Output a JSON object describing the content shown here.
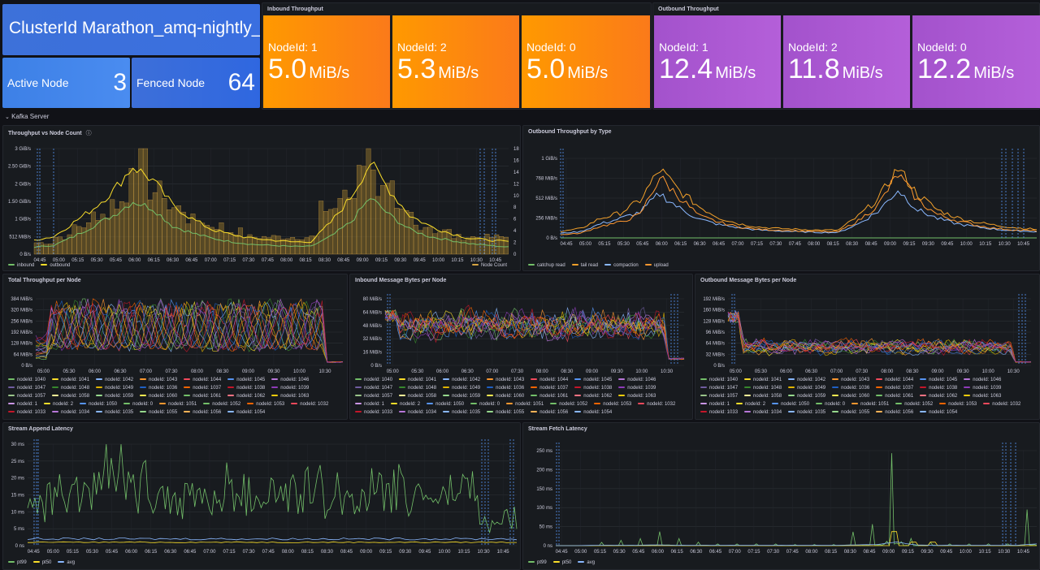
{
  "cluster": {
    "title": "ClusterId Marathon_amq-nightly_w",
    "active_label": "Active Node",
    "active_value": "3",
    "fenced_label": "Fenced Node",
    "fenced_value": "64"
  },
  "inbound": {
    "title": "Inbound Throughput",
    "nodes": [
      {
        "label": "NodeId: 1",
        "value": "5.0",
        "unit": "MiB/s"
      },
      {
        "label": "NodeId: 2",
        "value": "5.3",
        "unit": "MiB/s"
      },
      {
        "label": "NodeId: 0",
        "value": "5.0",
        "unit": "MiB/s"
      }
    ]
  },
  "outbound": {
    "title": "Outbound Throughput",
    "nodes": [
      {
        "label": "NodeId: 1",
        "value": "12.4",
        "unit": "MiB/s"
      },
      {
        "label": "NodeId: 2",
        "value": "11.8",
        "unit": "MiB/s"
      },
      {
        "label": "NodeId: 0",
        "value": "12.2",
        "unit": "MiB/s"
      }
    ]
  },
  "row_title": "Kafka Server",
  "row_chevron": "⌄",
  "colors": {
    "inbound": "#73bf69",
    "outbound": "#fade2a",
    "node_count": "#d7a544",
    "catchup": "#73bf69",
    "tail": "#f2a02a",
    "compaction": "#8ab8ff",
    "upload": "#ff9830",
    "pt99": "#73bf69",
    "pt50": "#fade2a",
    "avg": "#8ab8ff",
    "cluster_tile": "#3d71d9",
    "inbound_tile": "#ff8c1a",
    "outbound_tile": "#b351d9",
    "bg": "#111217",
    "panel": "#181b1f"
  },
  "panels": {
    "tvn": {
      "title": "Throughput vs Node Count",
      "info_icon": "ⓘ",
      "legend": [
        {
          "name": "inbound",
          "color": "#73bf69"
        },
        {
          "name": "outbound",
          "color": "#fade2a"
        }
      ],
      "legend_right": {
        "name": "Node Count",
        "color": "#d7a544"
      }
    },
    "obt": {
      "title": "Outbound Throughput by Type",
      "legend": [
        {
          "name": "catchup read",
          "color": "#73bf69"
        },
        {
          "name": "tail read",
          "color": "#f2a02a"
        },
        {
          "name": "compaction",
          "color": "#8ab8ff"
        },
        {
          "name": "upload",
          "color": "#ff9830"
        }
      ]
    },
    "ttn": {
      "title": "Total Throughput per Node"
    },
    "imb": {
      "title": "Inbound Message Bytes per Node"
    },
    "omb": {
      "title": "Outbound Message Bytes per Node"
    },
    "sal": {
      "title": "Stream Append Latency",
      "legend": [
        {
          "name": "pt99",
          "color": "#73bf69"
        },
        {
          "name": "pt50",
          "color": "#fade2a"
        },
        {
          "name": "avg",
          "color": "#8ab8ff"
        }
      ]
    },
    "sfl": {
      "title": "Stream Fetch Latency",
      "legend": [
        {
          "name": "pt99",
          "color": "#73bf69"
        },
        {
          "name": "pt50",
          "color": "#fade2a"
        },
        {
          "name": "avg",
          "color": "#8ab8ff"
        }
      ]
    }
  },
  "node_legend": [
    {
      "name": "nodeId: 1040",
      "color": "#73bf69"
    },
    {
      "name": "nodeId: 1041",
      "color": "#fade2a"
    },
    {
      "name": "nodeId: 1042",
      "color": "#8ab8ff"
    },
    {
      "name": "nodeId: 1043",
      "color": "#ff9830"
    },
    {
      "name": "nodeId: 1044",
      "color": "#f2495c"
    },
    {
      "name": "nodeId: 1045",
      "color": "#5794f2"
    },
    {
      "name": "nodeId: 1046",
      "color": "#b877d9"
    },
    {
      "name": "nodeId: 1047",
      "color": "#705da0"
    },
    {
      "name": "nodeId: 1048",
      "color": "#37872d"
    },
    {
      "name": "nodeId: 1049",
      "color": "#e0b400"
    },
    {
      "name": "nodeId: 1036",
      "color": "#1f60c4"
    },
    {
      "name": "nodeId: 1037",
      "color": "#fa6400"
    },
    {
      "name": "nodeId: 1038",
      "color": "#c4162a"
    },
    {
      "name": "nodeId: 1039",
      "color": "#8f3bb8"
    },
    {
      "name": "nodeId: 1057",
      "color": "#9ac48a"
    },
    {
      "name": "nodeId: 1058",
      "color": "#fff899"
    },
    {
      "name": "nodeId: 1059",
      "color": "#96d98d"
    },
    {
      "name": "nodeId: 1060",
      "color": "#ffee52"
    },
    {
      "name": "nodeId: 1061",
      "color": "#73bf69"
    },
    {
      "name": "nodeId: 1062",
      "color": "#ff7383"
    },
    {
      "name": "nodeId: 1063",
      "color": "#f2cc0c"
    },
    {
      "name": "nodeId: 1",
      "color": "#ca95e5"
    },
    {
      "name": "nodeId: 2",
      "color": "#fade2a"
    },
    {
      "name": "nodeId: 1050",
      "color": "#5794f2"
    },
    {
      "name": "nodeId: 0",
      "color": "#73bf69"
    },
    {
      "name": "nodeId: 1051",
      "color": "#ff9830"
    },
    {
      "name": "nodeId: 1052",
      "color": "#73bf69"
    },
    {
      "name": "nodeId: 1053",
      "color": "#fa6400"
    },
    {
      "name": "nodeId: 1032",
      "color": "#f2495c"
    },
    {
      "name": "nodeId: 1033",
      "color": "#c4162a"
    },
    {
      "name": "nodeId: 1034",
      "color": "#b877d9"
    },
    {
      "name": "nodeId: 1035",
      "color": "#8ab8ff"
    },
    {
      "name": "nodeId: 1055",
      "color": "#96d98d"
    },
    {
      "name": "nodeId: 1056",
      "color": "#ffb357"
    },
    {
      "name": "nodeId: 1054",
      "color": "#8ab8ff"
    }
  ],
  "chart_data": [
    {
      "type": "line",
      "title": "Throughput vs Node Count",
      "x": [
        "04:45",
        "05:00",
        "05:15",
        "05:30",
        "05:45",
        "06:00",
        "06:15",
        "06:30",
        "06:45",
        "07:00",
        "07:15",
        "07:30",
        "07:45",
        "08:00",
        "08:15",
        "08:30",
        "08:45",
        "09:00",
        "09:15",
        "09:30",
        "09:45",
        "10:00",
        "10:15",
        "10:30",
        "10:45"
      ],
      "y_ticks": [
        "0 B/s",
        "512 MiB/s",
        "1 GiB/s",
        "1.50 GiB/s",
        "2 GiB/s",
        "2.50 GiB/s",
        "3 GiB/s"
      ],
      "y2_ticks": [
        "0",
        "2",
        "4",
        "6",
        "8",
        "10",
        "12",
        "14",
        "16",
        "18"
      ],
      "series": [
        {
          "name": "inbound",
          "values": [
            0.2,
            0.25,
            0.5,
            0.8,
            1.1,
            1.5,
            1.3,
            0.8,
            0.6,
            0.45,
            0.35,
            0.28,
            0.25,
            0.22,
            0.22,
            0.5,
            0.9,
            1.6,
            1.1,
            0.7,
            0.5,
            0.4,
            0.3,
            0.25,
            0.2
          ]
        },
        {
          "name": "outbound",
          "values": [
            0.4,
            0.5,
            0.9,
            1.3,
            1.8,
            2.5,
            2.1,
            1.4,
            1.0,
            0.7,
            0.55,
            0.45,
            0.4,
            0.35,
            0.35,
            0.9,
            1.6,
            2.6,
            1.8,
            1.1,
            0.8,
            0.6,
            0.45,
            0.4,
            0.35
          ]
        },
        {
          "name": "Node Count",
          "values": [
            2,
            3,
            5,
            7,
            9,
            17,
            11,
            8,
            6,
            5,
            4,
            3,
            3,
            3,
            3,
            8,
            10,
            17,
            11,
            7,
            5,
            4,
            3,
            3,
            3
          ]
        }
      ]
    },
    {
      "type": "line",
      "title": "Outbound Throughput by Type",
      "x": [
        "04:45",
        "05:00",
        "05:15",
        "05:30",
        "05:45",
        "06:00",
        "06:15",
        "06:30",
        "06:45",
        "07:00",
        "07:15",
        "07:30",
        "07:45",
        "08:00",
        "08:15",
        "08:30",
        "08:45",
        "09:00",
        "09:15",
        "09:30",
        "09:45",
        "10:00",
        "10:15",
        "10:30",
        "10:45"
      ],
      "y_ticks": [
        "0 B/s",
        "256 MiB/s",
        "512 MiB/s",
        "768 MiB/s",
        "1 GiB/s"
      ],
      "series": [
        {
          "name": "catchup read",
          "values": [
            0,
            0,
            0,
            0,
            0,
            0,
            0,
            0,
            0,
            0,
            0,
            0,
            0,
            0,
            0,
            0,
            0,
            0.5,
            0,
            0,
            0,
            0,
            0,
            0,
            0
          ]
        },
        {
          "name": "tail read",
          "values": [
            80,
            120,
            250,
            320,
            480,
            880,
            600,
            400,
            260,
            180,
            140,
            120,
            110,
            100,
            100,
            280,
            500,
            900,
            560,
            360,
            260,
            200,
            160,
            130,
            110
          ]
        },
        {
          "name": "compaction",
          "values": [
            60,
            80,
            180,
            250,
            330,
            570,
            380,
            240,
            170,
            130,
            100,
            90,
            80,
            70,
            70,
            180,
            340,
            620,
            360,
            250,
            180,
            140,
            110,
            90,
            80
          ]
        },
        {
          "name": "upload",
          "values": [
            40,
            60,
            150,
            200,
            300,
            780,
            520,
            280,
            200,
            140,
            110,
            100,
            90,
            80,
            80,
            220,
            420,
            820,
            480,
            300,
            220,
            160,
            120,
            100,
            90
          ]
        }
      ]
    },
    {
      "type": "line",
      "title": "Total Throughput per Node",
      "x": [
        "05:00",
        "05:30",
        "06:00",
        "06:30",
        "07:00",
        "07:30",
        "08:00",
        "08:30",
        "09:00",
        "09:30",
        "10:00",
        "10:30"
      ],
      "y_ticks": [
        "0 B/s",
        "64 MiB/s",
        "128 MiB/s",
        "192 MiB/s",
        "256 MiB/s",
        "320 MiB/s",
        "384 MiB/s"
      ]
    },
    {
      "type": "line",
      "title": "Inbound Message Bytes per Node",
      "x": [
        "05:00",
        "05:30",
        "06:00",
        "06:30",
        "07:00",
        "07:30",
        "08:00",
        "08:30",
        "09:00",
        "09:30",
        "10:00",
        "10:30"
      ],
      "y_ticks": [
        "0 B/s",
        "16 MiB/s",
        "32 MiB/s",
        "48 MiB/s",
        "64 MiB/s",
        "80 MiB/s"
      ]
    },
    {
      "type": "line",
      "title": "Outbound Message Bytes per Node",
      "x": [
        "05:00",
        "05:30",
        "06:00",
        "06:30",
        "07:00",
        "07:30",
        "08:00",
        "08:30",
        "09:00",
        "09:30",
        "10:00",
        "10:30"
      ],
      "y_ticks": [
        "0 B/s",
        "32 MiB/s",
        "64 MiB/s",
        "96 MiB/s",
        "128 MiB/s",
        "160 MiB/s",
        "192 MiB/s"
      ]
    },
    {
      "type": "line",
      "title": "Stream Append Latency",
      "x": [
        "04:45",
        "05:00",
        "05:15",
        "05:30",
        "05:45",
        "06:00",
        "06:15",
        "06:30",
        "06:45",
        "07:00",
        "07:15",
        "07:30",
        "07:45",
        "08:00",
        "08:15",
        "08:30",
        "08:45",
        "09:00",
        "09:15",
        "09:30",
        "09:45",
        "10:00",
        "10:15",
        "10:30",
        "10:45"
      ],
      "y_ticks": [
        "0 ns",
        "5 ms",
        "10 ms",
        "15 ms",
        "20 ms",
        "25 ms",
        "30 ms"
      ],
      "series": [
        {
          "name": "pt99",
          "values": [
            12,
            14,
            16,
            18,
            21,
            17,
            16,
            14,
            15,
            13,
            16,
            14,
            15,
            14,
            16,
            15,
            14,
            17,
            16,
            15,
            14,
            15,
            18,
            6,
            8
          ]
        },
        {
          "name": "pt50",
          "values": [
            1,
            1,
            1,
            1,
            1,
            1,
            1,
            1,
            1,
            1,
            1,
            1,
            1,
            1,
            1,
            1,
            1,
            1,
            1,
            1,
            1,
            1,
            1,
            1,
            1
          ]
        },
        {
          "name": "avg",
          "values": [
            2,
            2,
            2,
            2,
            2,
            2,
            2,
            2,
            2,
            2,
            2,
            2,
            2,
            2,
            2,
            2,
            2,
            2,
            2,
            2,
            2,
            2,
            2,
            2,
            2
          ]
        }
      ]
    },
    {
      "type": "line",
      "title": "Stream Fetch Latency",
      "x": [
        "04:45",
        "05:00",
        "05:15",
        "05:30",
        "05:45",
        "06:00",
        "06:15",
        "06:30",
        "06:45",
        "07:00",
        "07:15",
        "07:30",
        "07:45",
        "08:00",
        "08:15",
        "08:30",
        "08:45",
        "09:00",
        "09:15",
        "09:30",
        "09:45",
        "10:00",
        "10:15",
        "10:30",
        "10:45"
      ],
      "y_ticks": [
        "0 ns",
        "50 ms",
        "100 ms",
        "150 ms",
        "200 ms",
        "250 ms"
      ],
      "series": [
        {
          "name": "pt99",
          "values": [
            0,
            0,
            10,
            15,
            20,
            40,
            20,
            10,
            5,
            5,
            5,
            5,
            3,
            3,
            3,
            40,
            60,
            260,
            20,
            10,
            5,
            5,
            5,
            5,
            100
          ]
        },
        {
          "name": "pt50",
          "values": [
            0,
            0,
            0,
            0,
            0,
            0,
            0,
            0,
            0,
            0,
            0,
            0,
            0,
            0,
            0,
            0,
            0,
            40,
            10,
            10,
            0,
            0,
            0,
            0,
            0
          ]
        },
        {
          "name": "avg",
          "values": [
            0,
            0,
            1,
            1,
            1,
            2,
            1,
            1,
            1,
            1,
            1,
            1,
            1,
            1,
            1,
            2,
            3,
            10,
            2,
            1,
            1,
            1,
            1,
            1,
            5
          ]
        }
      ]
    }
  ]
}
